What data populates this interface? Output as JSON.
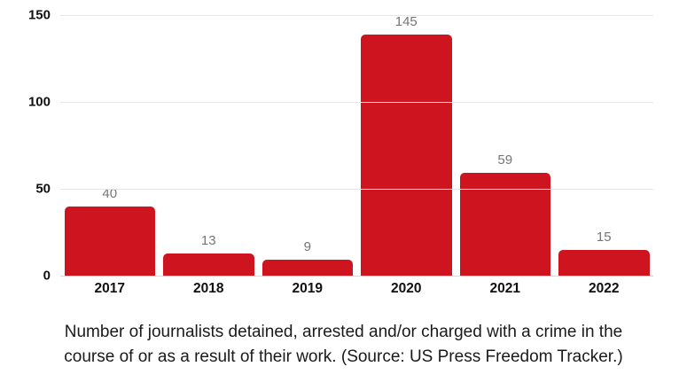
{
  "figure": {
    "caption": {
      "line1": "Number of journalists detained, arrested and/or charged with a crime in the",
      "line2": "course of or as a result of their work. (Source: US Press Freedom Tracker.)"
    }
  },
  "chart_data": {
    "type": "bar",
    "categories": [
      "2017",
      "2018",
      "2019",
      "2020",
      "2021",
      "2022"
    ],
    "values": [
      40,
      13,
      9,
      145,
      59,
      15
    ],
    "title": "",
    "xlabel": "",
    "ylabel": "",
    "ylim": [
      0,
      150
    ],
    "y_ticks": [
      0,
      50,
      100,
      150
    ],
    "grid": true,
    "legend": false,
    "bar_color": "#ce151f",
    "value_label_color": "#757575",
    "gridline_color": "#e7e7e7",
    "axis_line_color": "#d9d9d9",
    "tick_label_color": "#111111",
    "caption_color": "#1a1a1a"
  }
}
